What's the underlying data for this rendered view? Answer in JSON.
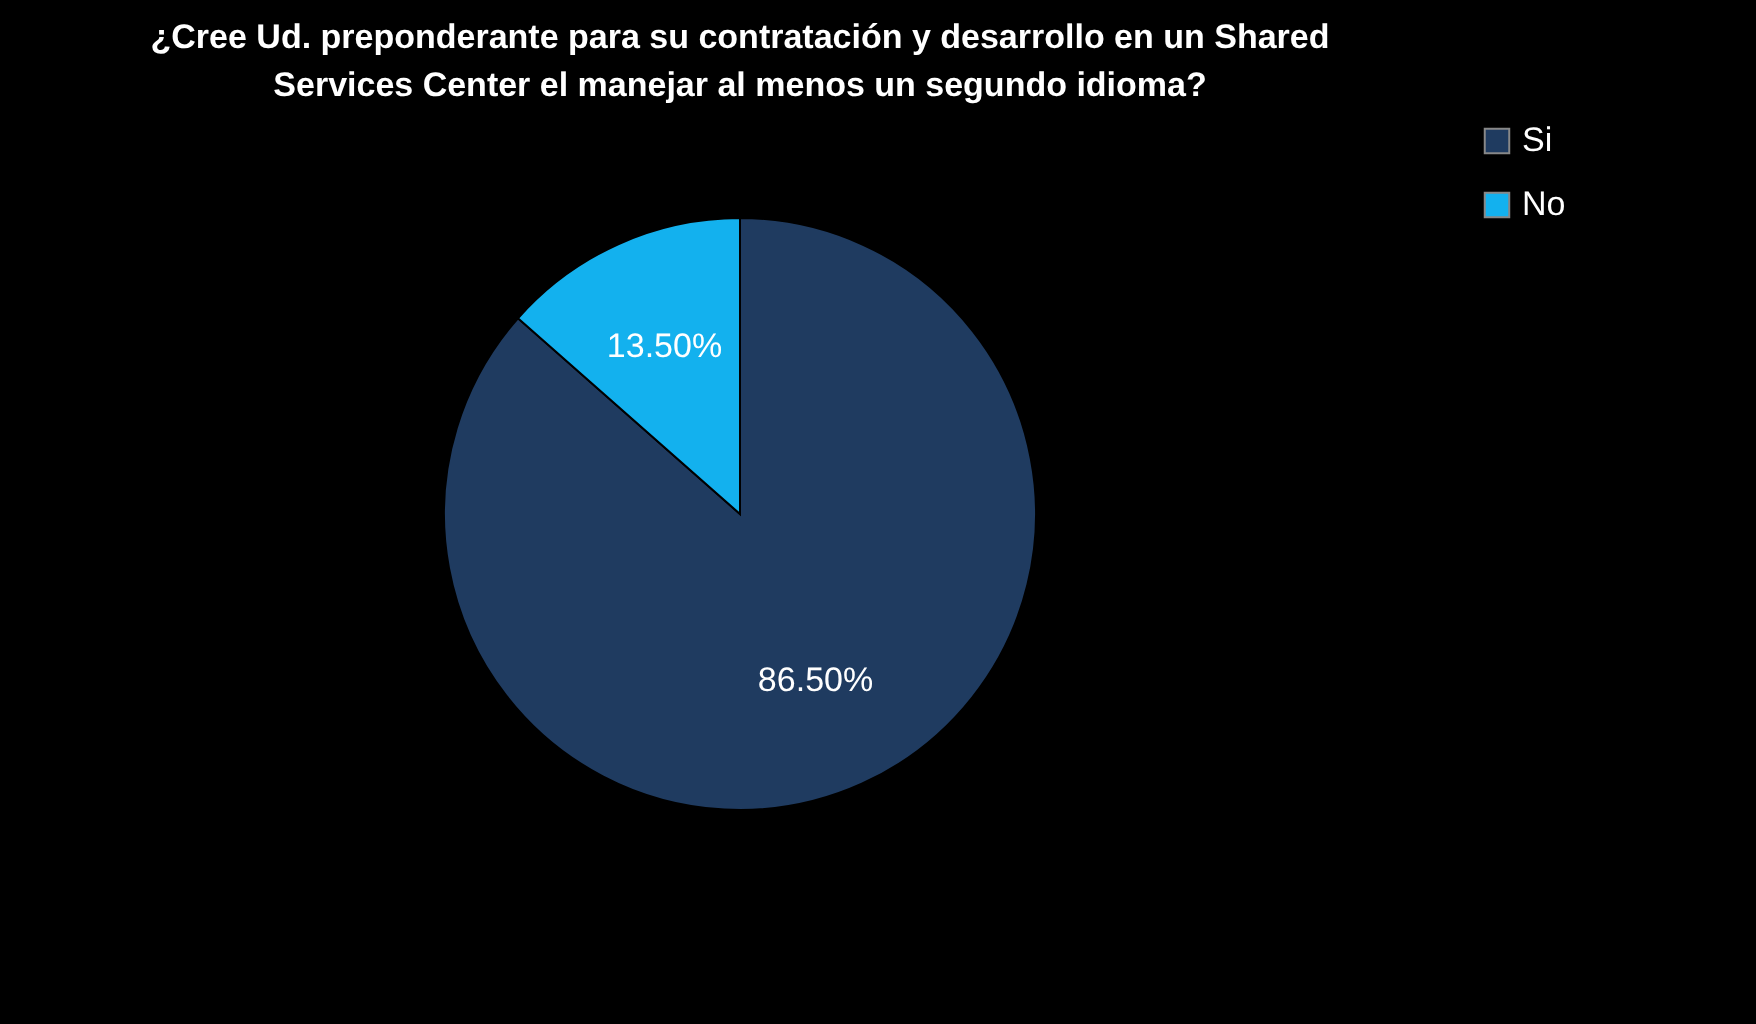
{
  "chart_data": {
    "type": "pie",
    "title": "¿Cree Ud. preponderante para su contratación y desarrollo en un Shared Services Center el manejar al menos un segundo idioma?",
    "categories": [
      "Si",
      "No"
    ],
    "values": [
      86.5,
      13.5
    ],
    "colors": [
      "#1f3b60",
      "#13b1ee"
    ],
    "value_labels": [
      "86.50%",
      "13.50%"
    ],
    "legend": "right"
  }
}
